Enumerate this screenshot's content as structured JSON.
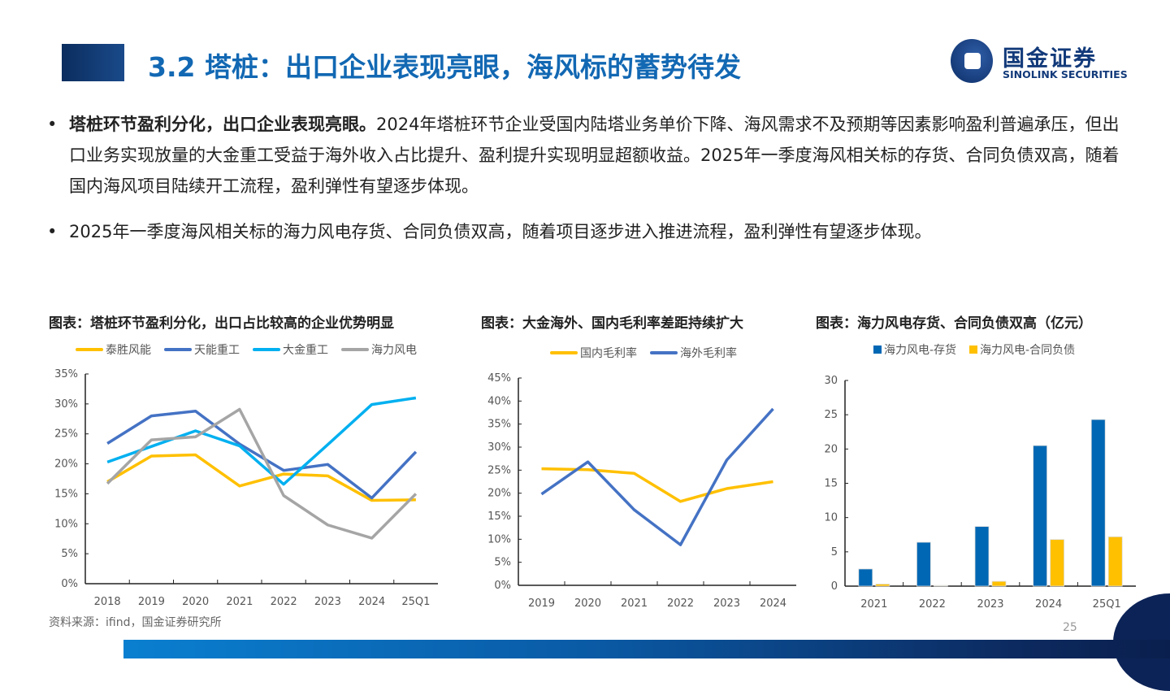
{
  "header": {
    "title": "3.2 塔桩：出口企业表现亮眼，海风标的蓄势待发",
    "logo_cn": "国金证券",
    "logo_en": "SINOLINK SECURITIES"
  },
  "bullets": [
    {
      "bold": "塔桩环节盈利分化，出口企业表现亮眼。",
      "text": "2024年塔桩环节企业受国内陆塔业务单价下降、海风需求不及预期等因素影响盈利普遍承压，但出口业务实现放量的大金重工受益于海外收入占比提升、盈利提升实现明显超额收益。2025年一季度海风相关标的存货、合同负债双高，随着国内海风项目陆续开工流程，盈利弹性有望逐步体现。"
    },
    {
      "bold": "",
      "text": "2025年一季度海风相关标的海力风电存货、合同负债双高，随着项目逐步进入推进流程，盈利弹性有望逐步体现。"
    }
  ],
  "chart_data": [
    {
      "type": "line",
      "title": "图表：塔桩环节盈利分化，出口占比较高的企业优势明显",
      "categories": [
        "2018",
        "2019",
        "2020",
        "2021",
        "2022",
        "2023",
        "2024",
        "25Q1"
      ],
      "ylim": [
        0,
        35
      ],
      "yticks": [
        "0%",
        "5%",
        "10%",
        "15%",
        "20%",
        "25%",
        "30%",
        "35%"
      ],
      "legend": "top",
      "series": [
        {
          "name": "泰胜风能",
          "color": "#ffc000",
          "values": [
            17,
            21.3,
            21.5,
            16.3,
            18.3,
            18,
            13.9,
            14
          ]
        },
        {
          "name": "天能重工",
          "color": "#4472c4",
          "values": [
            23.4,
            28,
            28.8,
            23.3,
            18.9,
            19.9,
            14.3,
            22
          ]
        },
        {
          "name": "大金重工",
          "color": "#00b0f0",
          "values": [
            20.3,
            22.9,
            25.5,
            23,
            16.6,
            23.2,
            29.9,
            31
          ]
        },
        {
          "name": "海力风电",
          "color": "#a5a5a5",
          "values": [
            16.7,
            24,
            24.5,
            29.1,
            14.7,
            9.8,
            7.6,
            15
          ]
        }
      ]
    },
    {
      "type": "line",
      "title": "图表：大金海外、国内毛利率差距持续扩大",
      "categories": [
        "2019",
        "2020",
        "2021",
        "2022",
        "2023",
        "2024"
      ],
      "ylim": [
        0,
        45
      ],
      "yticks": [
        "0%",
        "5%",
        "10%",
        "15%",
        "20%",
        "25%",
        "30%",
        "35%",
        "40%",
        "45%"
      ],
      "legend": "top",
      "series": [
        {
          "name": "国内毛利率",
          "color": "#ffc000",
          "values": [
            25.3,
            25.1,
            24.3,
            18.2,
            21,
            22.5
          ]
        },
        {
          "name": "海外毛利率",
          "color": "#4472c4",
          "values": [
            19.8,
            26.8,
            16.4,
            8.8,
            27.2,
            38.3
          ]
        }
      ]
    },
    {
      "type": "bar",
      "title": "图表：海力风电存货、合同负债双高（亿元）",
      "categories": [
        "2021",
        "2022",
        "2023",
        "2024",
        "25Q1"
      ],
      "ylim": [
        0,
        30
      ],
      "yticks": [
        "0",
        "5",
        "10",
        "15",
        "20",
        "25",
        "30"
      ],
      "legend": "top",
      "series": [
        {
          "name": "海力风电-存货",
          "color": "#0067b4",
          "values": [
            2.5,
            6.4,
            8.7,
            20.5,
            24.3
          ]
        },
        {
          "name": "海力风电-合同负债",
          "color": "#ffc000",
          "values": [
            0.3,
            0.1,
            0.7,
            6.8,
            7.2
          ]
        }
      ]
    }
  ],
  "footer": {
    "source": "资料来源：ifind，国金证券研究所",
    "page": "25"
  }
}
